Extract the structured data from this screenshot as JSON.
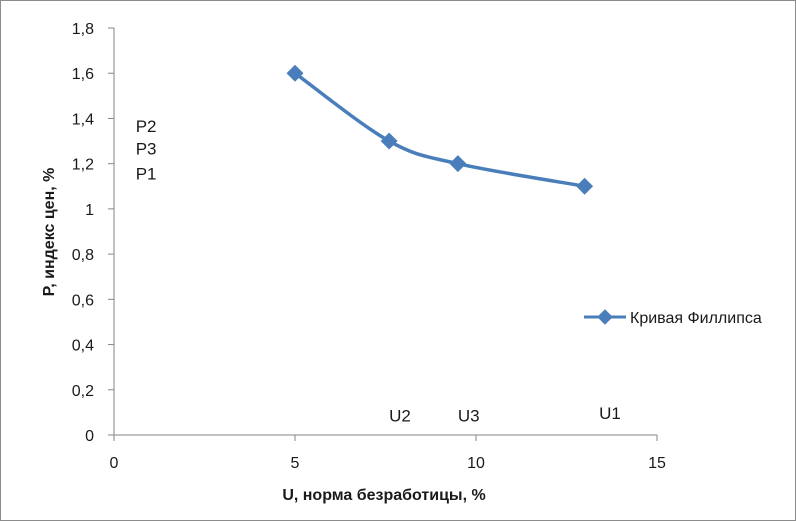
{
  "chart_data": {
    "type": "line",
    "title": "",
    "xlabel": "U, норма безработицы, %",
    "ylabel": "P, индекс цен, %",
    "xlim": [
      0,
      15
    ],
    "ylim": [
      0,
      1.8
    ],
    "x_ticks": [
      0,
      5,
      10,
      15
    ],
    "y_ticks": [
      0,
      0.2,
      0.4,
      0.6,
      0.8,
      1,
      1.2,
      1.4,
      1.6,
      1.8
    ],
    "x_tick_labels": [
      "0",
      "5",
      "10",
      "15"
    ],
    "y_tick_labels": [
      "0",
      "0,2",
      "0,4",
      "0,6",
      "0,8",
      "1",
      "1,2",
      "1,4",
      "1,6",
      "1,8"
    ],
    "grid": false,
    "legend_position": "right",
    "series": [
      {
        "name": "Кривая Филлипса",
        "color": "#4a7ebb",
        "marker": "diamond",
        "smooth": true,
        "x": [
          5,
          7.6,
          9.5,
          13
        ],
        "y": [
          1.6,
          1.3,
          1.2,
          1.1
        ]
      }
    ],
    "annotations": [
      {
        "text": "P2",
        "x": 0.6,
        "y": 1.34
      },
      {
        "text": "P3",
        "x": 0.6,
        "y": 1.24
      },
      {
        "text": "P1",
        "x": 0.6,
        "y": 1.13
      },
      {
        "text": "U2",
        "x": 7.6,
        "y": 0.06
      },
      {
        "text": "U3",
        "x": 9.5,
        "y": 0.06
      },
      {
        "text": "U1",
        "x": 13.4,
        "y": 0.07
      }
    ]
  }
}
